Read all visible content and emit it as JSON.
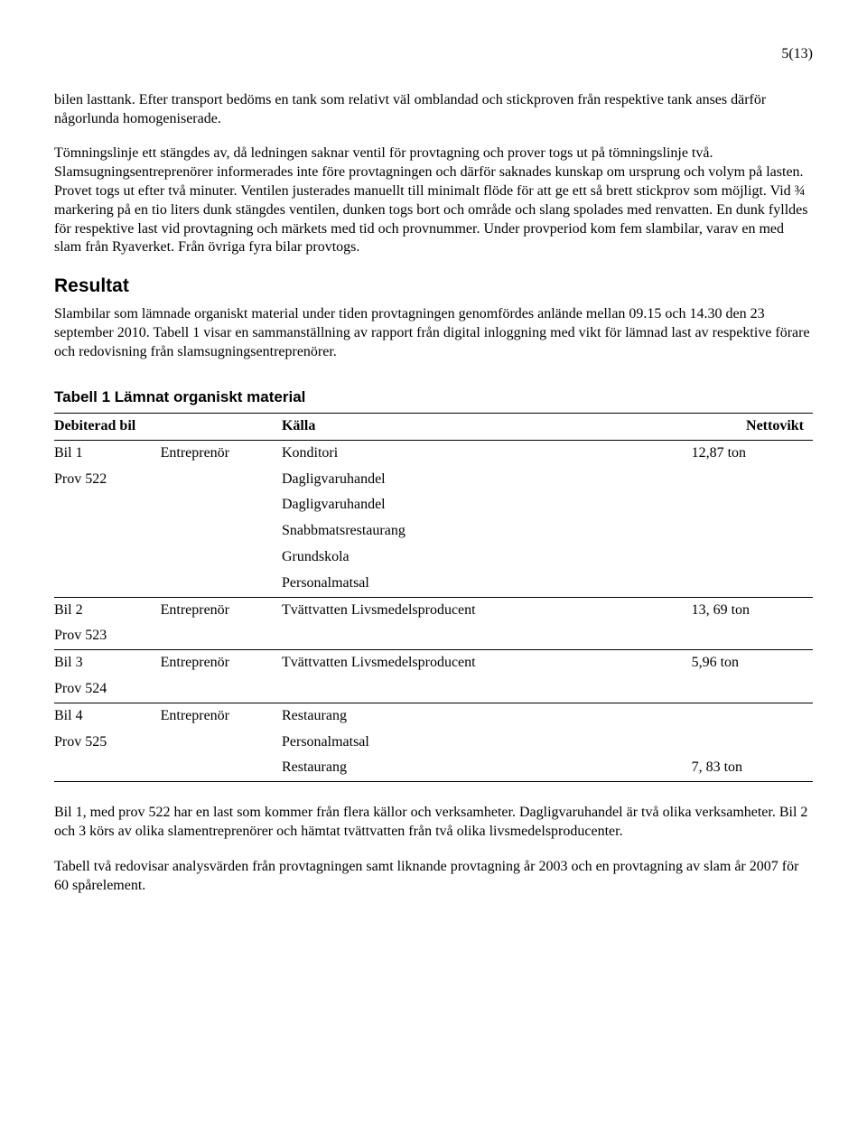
{
  "page_number": "5(13)",
  "paragraphs": {
    "p1": "bilen lasttank. Efter transport bedöms en tank som relativt väl omblandad och stickproven från respektive tank anses därför någorlunda homogeniserade.",
    "p2": "Tömningslinje ett stängdes av, då ledningen saknar ventil för provtagning och prover togs ut på tömningslinje två. Slamsugningsentreprenörer informerades inte före provtagningen och därför saknades kunskap om ursprung och volym på lasten. Provet togs ut efter två minuter. Ventilen justerades manuellt till minimalt flöde för att ge ett så brett stickprov som möjligt. Vid ¾ markering på en tio liters dunk stängdes ventilen, dunken togs bort och område och slang spolades med renvatten. En dunk fylldes för respektive last vid provtagning och märkets med tid och provnummer. Under provperiod kom fem slambilar, varav en med slam från Ryaverket. Från övriga fyra bilar provtogs.",
    "p3": "Slambilar som lämnade organiskt material under tiden provtagningen genomfördes anlände mellan 09.15 och 14.30 den 23 september 2010. Tabell 1 visar en sammanställning av rapport från digital inloggning med vikt för lämnad last av respektive förare och redovisning från slamsugningsentreprenörer.",
    "p4": "Bil 1, med prov 522 har en last som kommer från flera källor och verksamheter. Dagligvaruhandel är två olika verksamheter. Bil 2 och 3 körs av olika slamentreprenörer och hämtat tvättvatten från två olika livsmedelsproducenter.",
    "p5": "Tabell två redovisar analysvärden från provtagningen samt liknande provtagning år 2003 och en provtagning av slam år 2007 för 60 spårelement."
  },
  "headings": {
    "resultat": "Resultat",
    "table_title": "Tabell 1 Lämnat organiskt material"
  },
  "table": {
    "headers": {
      "c1": "Debiterad bil",
      "c2": "",
      "c3": "Källa",
      "c4": "Nettovikt"
    },
    "rows": [
      {
        "c1": "Bil 1",
        "c2": "Entreprenör",
        "c3": "Konditori",
        "c4": "12,87 ton"
      },
      {
        "c1": "Prov 522",
        "c2": "",
        "c3": "Dagligvaruhandel",
        "c4": ""
      },
      {
        "c1": "",
        "c2": "",
        "c3": "Dagligvaruhandel",
        "c4": ""
      },
      {
        "c1": "",
        "c2": "",
        "c3": "Snabbmatsrestaurang",
        "c4": ""
      },
      {
        "c1": "",
        "c2": "",
        "c3": "Grundskola",
        "c4": ""
      },
      {
        "c1": "",
        "c2": "",
        "c3": "Personalmatsal",
        "c4": "",
        "sep": true
      },
      {
        "c1": "Bil 2",
        "c2": "Entreprenör",
        "c3": "Tvättvatten Livsmedelsproducent",
        "c4": "13, 69 ton"
      },
      {
        "c1": "Prov 523",
        "c2": "",
        "c3": "",
        "c4": "",
        "sep": true
      },
      {
        "c1": "Bil 3",
        "c2": "Entreprenör",
        "c3": " Tvättvatten Livsmedelsproducent",
        "c4": "5,96 ton"
      },
      {
        "c1": "Prov 524",
        "c2": "",
        "c3": "",
        "c4": "",
        "sep": true
      },
      {
        "c1": "Bil 4",
        "c2": "Entreprenör",
        "c3": "Restaurang",
        "c4": ""
      },
      {
        "c1": "Prov 525",
        "c2": "",
        "c3": "Personalmatsal",
        "c4": ""
      },
      {
        "c1": "",
        "c2": "",
        "c3": "Restaurang",
        "c4": "7, 83 ton",
        "end": true
      }
    ]
  }
}
